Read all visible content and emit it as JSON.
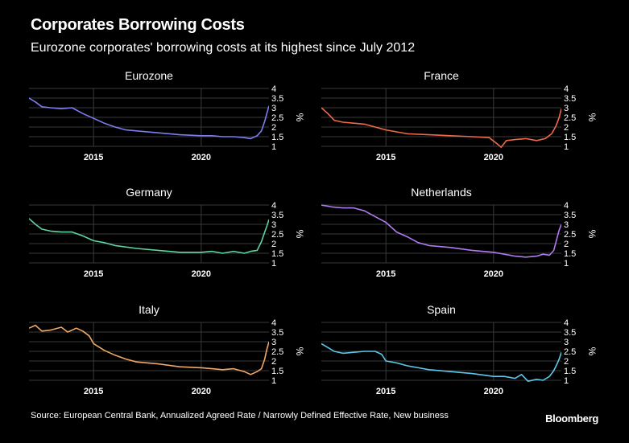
{
  "header": {
    "title": "Corporates Borrowing Costs",
    "subtitle": "Eurozone corporates' borrowing costs at its highest since July 2012"
  },
  "footer": {
    "source": "Source: European Central Bank, Annualized Agreed Rate / Narrowly Defined Effective Rate, New business",
    "brand": "Bloomberg"
  },
  "chart_data": [
    {
      "type": "line",
      "title": "Eurozone",
      "ylabel": "%",
      "color": "#7b7ff0",
      "xlim": [
        2012.0,
        2023.15
      ],
      "ylim": [
        1,
        4
      ],
      "yticks": [
        1,
        1.5,
        2,
        2.5,
        3,
        3.5,
        4
      ],
      "ytick_labels": [
        "1",
        "1.5",
        "2",
        "2.5",
        "3",
        "3.5",
        "4"
      ],
      "xticks": [
        2015,
        2020
      ],
      "xtick_labels": [
        "2015",
        "2020"
      ],
      "grid": true,
      "x": [
        2012.0,
        2012.3,
        2012.6,
        2013.0,
        2013.5,
        2014.0,
        2014.5,
        2015.0,
        2015.5,
        2016.0,
        2016.5,
        2017.0,
        2018.0,
        2019.0,
        2020.0,
        2020.5,
        2021.0,
        2021.5,
        2022.0,
        2022.3,
        2022.6,
        2022.8,
        2022.95,
        2023.05,
        2023.15
      ],
      "y": [
        3.5,
        3.3,
        3.05,
        3.0,
        2.95,
        3.0,
        2.7,
        2.45,
        2.2,
        2.0,
        1.85,
        1.8,
        1.7,
        1.6,
        1.55,
        1.55,
        1.5,
        1.5,
        1.45,
        1.4,
        1.55,
        1.8,
        2.3,
        2.7,
        3.1
      ]
    },
    {
      "type": "line",
      "title": "France",
      "ylabel": "%",
      "color": "#f06a4a",
      "xlim": [
        2012.0,
        2023.15
      ],
      "ylim": [
        1,
        4
      ],
      "yticks": [
        1,
        1.5,
        2,
        2.5,
        3,
        3.5,
        4
      ],
      "ytick_labels": [
        "1",
        "1.5",
        "2",
        "2.5",
        "3",
        "3.5",
        "4"
      ],
      "xticks": [
        2015,
        2020
      ],
      "xtick_labels": [
        "2015",
        "2020"
      ],
      "grid": true,
      "x": [
        2012.0,
        2012.3,
        2012.6,
        2013.0,
        2013.5,
        2014.0,
        2014.5,
        2015.0,
        2015.5,
        2016.0,
        2017.0,
        2018.0,
        2019.0,
        2019.8,
        2020.2,
        2020.35,
        2020.6,
        2021.0,
        2021.5,
        2022.0,
        2022.4,
        2022.7,
        2022.9,
        2023.05,
        2023.15
      ],
      "y": [
        3.0,
        2.7,
        2.35,
        2.25,
        2.2,
        2.15,
        2.0,
        1.85,
        1.75,
        1.65,
        1.6,
        1.55,
        1.5,
        1.45,
        1.1,
        0.95,
        1.3,
        1.35,
        1.4,
        1.3,
        1.4,
        1.65,
        2.05,
        2.5,
        2.95
      ]
    },
    {
      "type": "line",
      "title": "Germany",
      "ylabel": "%",
      "color": "#5ed4a0",
      "xlim": [
        2012.0,
        2023.15
      ],
      "ylim": [
        1,
        4
      ],
      "yticks": [
        1,
        1.5,
        2,
        2.5,
        3,
        3.5,
        4
      ],
      "ytick_labels": [
        "1",
        "1.5",
        "2",
        "2.5",
        "3",
        "3.5",
        "4"
      ],
      "xticks": [
        2015,
        2020
      ],
      "xtick_labels": [
        "2015",
        "2020"
      ],
      "grid": true,
      "x": [
        2012.0,
        2012.3,
        2012.6,
        2013.0,
        2013.5,
        2014.0,
        2014.5,
        2015.0,
        2015.5,
        2016.0,
        2017.0,
        2018.0,
        2019.0,
        2020.0,
        2020.5,
        2021.0,
        2021.5,
        2022.0,
        2022.3,
        2022.6,
        2022.8,
        2022.95,
        2023.05,
        2023.15
      ],
      "y": [
        3.3,
        3.0,
        2.75,
        2.65,
        2.6,
        2.6,
        2.4,
        2.15,
        2.05,
        1.9,
        1.75,
        1.65,
        1.55,
        1.55,
        1.6,
        1.5,
        1.6,
        1.5,
        1.6,
        1.65,
        2.1,
        2.6,
        2.9,
        3.25
      ]
    },
    {
      "type": "line",
      "title": "Netherlands",
      "ylabel": "%",
      "color": "#b07af0",
      "xlim": [
        2012.0,
        2023.15
      ],
      "ylim": [
        1,
        4
      ],
      "yticks": [
        1,
        1.5,
        2,
        2.5,
        3,
        3.5,
        4
      ],
      "ytick_labels": [
        "1",
        "1.5",
        "2",
        "2.5",
        "3",
        "3.5",
        "4"
      ],
      "xticks": [
        2015,
        2020
      ],
      "xtick_labels": [
        "2015",
        "2020"
      ],
      "grid": true,
      "x": [
        2012.0,
        2012.5,
        2013.0,
        2013.5,
        2014.0,
        2014.5,
        2015.0,
        2015.5,
        2016.0,
        2016.5,
        2017.0,
        2018.0,
        2019.0,
        2020.0,
        2020.5,
        2021.0,
        2021.5,
        2022.0,
        2022.3,
        2022.6,
        2022.8,
        2022.95,
        2023.05,
        2023.15
      ],
      "y": [
        4.0,
        3.9,
        3.85,
        3.85,
        3.7,
        3.4,
        3.1,
        2.6,
        2.35,
        2.05,
        1.9,
        1.8,
        1.65,
        1.55,
        1.45,
        1.35,
        1.3,
        1.35,
        1.45,
        1.4,
        1.65,
        2.3,
        2.7,
        3.0
      ]
    },
    {
      "type": "line",
      "title": "Italy",
      "ylabel": "%",
      "color": "#f0a868",
      "xlim": [
        2012.0,
        2023.15
      ],
      "ylim": [
        1,
        4
      ],
      "yticks": [
        1,
        1.5,
        2,
        2.5,
        3,
        3.5,
        4
      ],
      "ytick_labels": [
        "1",
        "1.5",
        "2",
        "2.5",
        "3",
        "3.5",
        "4"
      ],
      "xticks": [
        2015,
        2020
      ],
      "xtick_labels": [
        "2015",
        "2020"
      ],
      "grid": true,
      "x": [
        2012.0,
        2012.3,
        2012.6,
        2013.0,
        2013.5,
        2013.8,
        2014.2,
        2014.5,
        2014.8,
        2015.0,
        2015.5,
        2016.0,
        2016.5,
        2017.0,
        2018.0,
        2019.0,
        2020.0,
        2020.5,
        2021.0,
        2021.5,
        2022.0,
        2022.3,
        2022.6,
        2022.8,
        2022.95,
        2023.05,
        2023.15
      ],
      "y": [
        3.7,
        3.85,
        3.55,
        3.6,
        3.75,
        3.5,
        3.7,
        3.55,
        3.3,
        2.9,
        2.55,
        2.3,
        2.1,
        1.95,
        1.85,
        1.7,
        1.65,
        1.6,
        1.55,
        1.6,
        1.45,
        1.3,
        1.45,
        1.6,
        2.1,
        2.6,
        3.0
      ]
    },
    {
      "type": "line",
      "title": "Spain",
      "ylabel": "%",
      "color": "#5cc9ec",
      "xlim": [
        2012.0,
        2023.15
      ],
      "ylim": [
        1,
        4
      ],
      "yticks": [
        1,
        1.5,
        2,
        2.5,
        3,
        3.5,
        4
      ],
      "ytick_labels": [
        "1",
        "1.5",
        "2",
        "2.5",
        "3",
        "3.5",
        "4"
      ],
      "xticks": [
        2015,
        2020
      ],
      "xtick_labels": [
        "2015",
        "2020"
      ],
      "grid": true,
      "x": [
        2012.0,
        2012.3,
        2012.6,
        2013.0,
        2013.5,
        2014.0,
        2014.5,
        2014.8,
        2015.0,
        2015.5,
        2016.0,
        2016.5,
        2017.0,
        2018.0,
        2019.0,
        2020.0,
        2020.5,
        2021.0,
        2021.3,
        2021.6,
        2022.0,
        2022.3,
        2022.6,
        2022.8,
        2022.95,
        2023.05,
        2023.15
      ],
      "y": [
        2.9,
        2.7,
        2.5,
        2.4,
        2.45,
        2.5,
        2.5,
        2.35,
        2.0,
        1.9,
        1.75,
        1.65,
        1.55,
        1.45,
        1.35,
        1.2,
        1.2,
        1.1,
        1.3,
        0.95,
        1.05,
        1.0,
        1.2,
        1.5,
        1.85,
        2.1,
        2.45
      ]
    }
  ]
}
